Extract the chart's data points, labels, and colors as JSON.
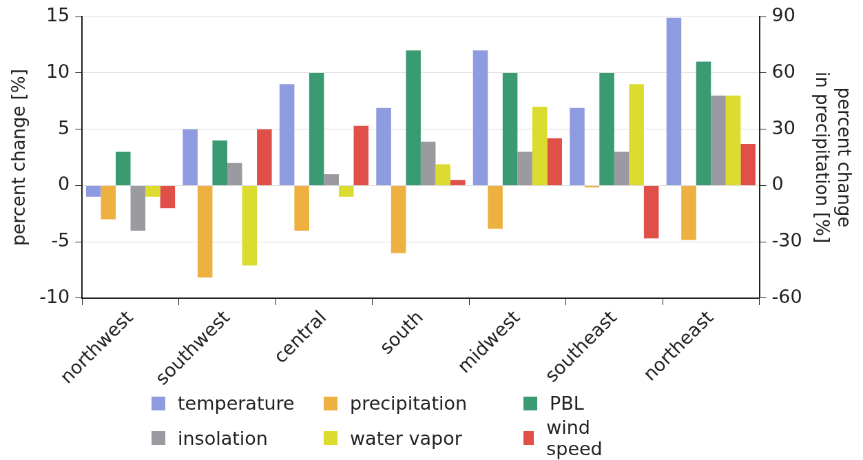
{
  "chart_data": {
    "type": "bar",
    "ylabel": "percent change [%]",
    "y2label": "percent change\nin precipitation [%]",
    "categories": [
      "northwest",
      "southwest",
      "central",
      "south",
      "midwest",
      "southeast",
      "northeast"
    ],
    "series": [
      {
        "name": "temperature",
        "color": "#8f9be0",
        "values": [
          -1,
          5,
          9,
          6.9,
          12,
          6.9,
          14.9
        ]
      },
      {
        "name": "precipitation",
        "color": "#eeb040",
        "axis": "y2",
        "values": [
          -18,
          -49,
          -24,
          -36,
          -23,
          -1,
          -29
        ]
      },
      {
        "name": "PBL",
        "color": "#3a9a72",
        "values": [
          3,
          4,
          10,
          12,
          10,
          10,
          11
        ]
      },
      {
        "name": "insolation",
        "color": "#9a9aa0",
        "values": [
          -4,
          2,
          1,
          3.9,
          3,
          3,
          8
        ]
      },
      {
        "name": "water vapor",
        "color": "#dcdc30",
        "values": [
          -1,
          -7.1,
          -1,
          1.9,
          7,
          9,
          8
        ]
      },
      {
        "name": "wind speed",
        "color": "#e05048",
        "values": [
          -2,
          5,
          5.3,
          0.5,
          4.2,
          -4.7,
          3.7
        ]
      }
    ],
    "ylim": [
      -10,
      15
    ],
    "yticks": [
      -10,
      -5,
      0,
      5,
      10,
      15
    ],
    "y2lim": [
      -60,
      90
    ],
    "y2ticks": [
      -60,
      -30,
      0,
      30,
      60,
      90
    ],
    "grid": "y",
    "legend": "bottom"
  }
}
